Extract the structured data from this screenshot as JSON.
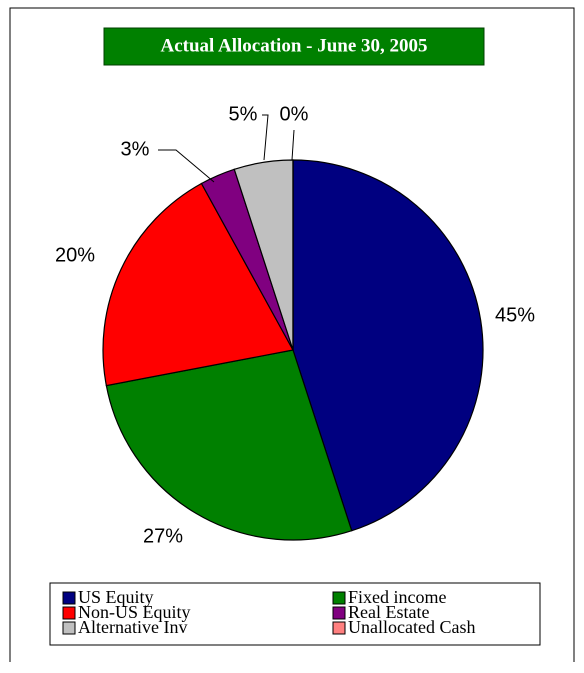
{
  "chart_data": {
    "type": "pie",
    "title": "Actual Allocation -  June 30, 2005",
    "categories": [
      "US Equity",
      "Fixed income",
      "Non-US Equity",
      "Real Estate",
      "Alternative Inv",
      "Unallocated Cash"
    ],
    "values": [
      45,
      27,
      20,
      3,
      5,
      0
    ],
    "value_labels": [
      "45%",
      "27%",
      "20%",
      "3%",
      "5%",
      "0%"
    ],
    "colors": [
      "#000080",
      "#008000",
      "#ff0000",
      "#800080",
      "#c0c0c0",
      "#ff8080"
    ],
    "legend": "bottom"
  }
}
